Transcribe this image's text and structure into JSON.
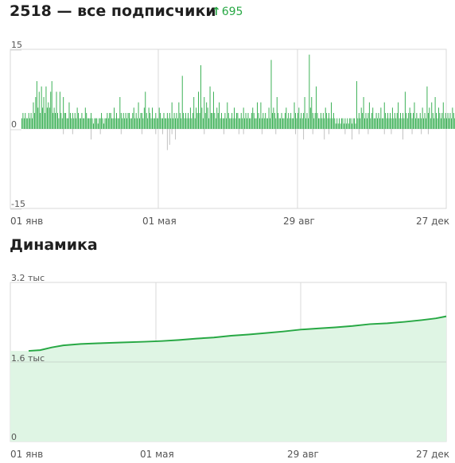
{
  "header": {
    "title": "2518 — все подписчики",
    "delta_arrow": "↑",
    "delta_value": "695"
  },
  "dynamics": {
    "title": "Динамика"
  },
  "colors": {
    "green": "#27a844",
    "grid": "#d9d9d9",
    "area": "#dff5e4"
  },
  "chart_data": [
    {
      "type": "bar",
      "x_tick_labels": [
        "01 янв",
        "01 мая",
        "29 авг",
        "27 дек"
      ],
      "y_tick_labels": [
        "15",
        "0",
        "-15"
      ],
      "ylim": [
        -15,
        15
      ],
      "days": 361,
      "positive_values": [
        2,
        3,
        2,
        3,
        2,
        2,
        3,
        2,
        3,
        2,
        5,
        3,
        6,
        9,
        4,
        7,
        3,
        8,
        4,
        6,
        3,
        8,
        4,
        5,
        4,
        7,
        9,
        3,
        4,
        3,
        7,
        3,
        2,
        7,
        3,
        2,
        6,
        3,
        3,
        2,
        2,
        5,
        3,
        2,
        3,
        2,
        3,
        2,
        4,
        3,
        2,
        2,
        3,
        2,
        2,
        4,
        3,
        2,
        2,
        2,
        3,
        2,
        1,
        2,
        2,
        2,
        1,
        2,
        2,
        3,
        2,
        1,
        2,
        2,
        3,
        2,
        3,
        3,
        2,
        2,
        4,
        2,
        3,
        2,
        2,
        6,
        3,
        2,
        3,
        2,
        3,
        2,
        3,
        3,
        2,
        2,
        3,
        4,
        2,
        3,
        2,
        5,
        2,
        3,
        3,
        2,
        4,
        7,
        3,
        2,
        4,
        3,
        2,
        4,
        2,
        2,
        3,
        2,
        2,
        4,
        3,
        2,
        2,
        3,
        2,
        2,
        3,
        2,
        3,
        2,
        5,
        2,
        3,
        2,
        3,
        2,
        5,
        3,
        2,
        10,
        3,
        2,
        3,
        2,
        3,
        2,
        4,
        2,
        3,
        6,
        2,
        4,
        3,
        7,
        3,
        12,
        4,
        2,
        6,
        3,
        5,
        4,
        2,
        8,
        3,
        3,
        7,
        3,
        2,
        4,
        3,
        5,
        2,
        3,
        2,
        2,
        3,
        2,
        5,
        3,
        2,
        2,
        3,
        2,
        4,
        2,
        3,
        3,
        2,
        2,
        3,
        2,
        4,
        2,
        3,
        2,
        3,
        2,
        2,
        3,
        4,
        3,
        2,
        2,
        5,
        3,
        2,
        5,
        2,
        3,
        2,
        3,
        2,
        2,
        4,
        2,
        13,
        3,
        4,
        3,
        2,
        6,
        3,
        2,
        2,
        3,
        2,
        2,
        3,
        4,
        2,
        3,
        2,
        3,
        2,
        2,
        5,
        3,
        2,
        3,
        4,
        2,
        3,
        2,
        3,
        6,
        2,
        3,
        2,
        14,
        4,
        6,
        3,
        2,
        3,
        8,
        3,
        2,
        2,
        3,
        2,
        3,
        2,
        4,
        3,
        2,
        3,
        2,
        5,
        2,
        3,
        2,
        1,
        2,
        1,
        2,
        1,
        2,
        2,
        1,
        2,
        1,
        2,
        1,
        2,
        2,
        1,
        2,
        2,
        1,
        9,
        2,
        3,
        2,
        4,
        3,
        6,
        2,
        3,
        2,
        3,
        5,
        2,
        3,
        4,
        2,
        2,
        3,
        2,
        3,
        2,
        4,
        2,
        2,
        5,
        3,
        2,
        3,
        2,
        3,
        2,
        4,
        2,
        3,
        2,
        3,
        5,
        2,
        3,
        2,
        3,
        2,
        7,
        3,
        2,
        3,
        4,
        3,
        2,
        3,
        5,
        2,
        3,
        2,
        2,
        3,
        2,
        4,
        2,
        3,
        2,
        8,
        3,
        4,
        2,
        5,
        3,
        2,
        6,
        3,
        2,
        4,
        3,
        2,
        3,
        5,
        2,
        3,
        2,
        3,
        2,
        3,
        2,
        4,
        3,
        2,
        3,
        4,
        2,
        3,
        2,
        5,
        3,
        4,
        3,
        2,
        3,
        2,
        4,
        3,
        2,
        5,
        2,
        3,
        2
      ],
      "negative_values": [
        0,
        0,
        0,
        0,
        0,
        0,
        0,
        0,
        0,
        0,
        0,
        0,
        0,
        0,
        0,
        0,
        0,
        0,
        0,
        0,
        0,
        0,
        0,
        0,
        0,
        0,
        0,
        0,
        0,
        0,
        0,
        0,
        0,
        0,
        0,
        0,
        0,
        0,
        0,
        0,
        0,
        0,
        0,
        0,
        0,
        0,
        0,
        0,
        0,
        0,
        0,
        0,
        0,
        0,
        0,
        0,
        0,
        0,
        0,
        0,
        0,
        0,
        0,
        0,
        0,
        0,
        0,
        0,
        0,
        0,
        0,
        0,
        0,
        0,
        0,
        0,
        0,
        0,
        0,
        0,
        0,
        0,
        0,
        0,
        0,
        0,
        0,
        0,
        0,
        0,
        0,
        0,
        0,
        0,
        0,
        0,
        0,
        0,
        0,
        0,
        0,
        0,
        0,
        0,
        0,
        0,
        0,
        0,
        0,
        0,
        0,
        0,
        0,
        0,
        0,
        0,
        0,
        0,
        0,
        0,
        0,
        0,
        0,
        0,
        0,
        0,
        0,
        0,
        0,
        0,
        0,
        0,
        0,
        0,
        0,
        0,
        0,
        0,
        0,
        0,
        0,
        0,
        0,
        0,
        0,
        0,
        0,
        0,
        0,
        0,
        0,
        0,
        0,
        0,
        0,
        0,
        0,
        0,
        0,
        0,
        0,
        0,
        0,
        0,
        0,
        0,
        0,
        0,
        0,
        0,
        0,
        0,
        0,
        0,
        0,
        0,
        0,
        0,
        0,
        0,
        0,
        0,
        0,
        0,
        0,
        0,
        0,
        0,
        0,
        0,
        0,
        0,
        0,
        0,
        0,
        0,
        0,
        0,
        0,
        0,
        0,
        0,
        0,
        0,
        0,
        0,
        0,
        0,
        0,
        0,
        0,
        0,
        0,
        0,
        0,
        0,
        0,
        0,
        0,
        0,
        0,
        0,
        0,
        0,
        0,
        0,
        0,
        0,
        0,
        0,
        0,
        0,
        0,
        0,
        0,
        0,
        0,
        0,
        0,
        0,
        0,
        0,
        0,
        0,
        0,
        0,
        0,
        0,
        0,
        0,
        0,
        0,
        0,
        0,
        0,
        0,
        0,
        0,
        0,
        0,
        0,
        0,
        0,
        0,
        0,
        0,
        0,
        0,
        0,
        0,
        0,
        0,
        0,
        0,
        0,
        0,
        0,
        0,
        0,
        0,
        0,
        0,
        0,
        0,
        0,
        0,
        0,
        0,
        0,
        0,
        0,
        0,
        0,
        0,
        0,
        0,
        0,
        0,
        0,
        0,
        0,
        0,
        0,
        0,
        0,
        0,
        0,
        0,
        0,
        0,
        0,
        0,
        0,
        0,
        0,
        0,
        0,
        0,
        0,
        0,
        0,
        0,
        0,
        0,
        0,
        0,
        0,
        0,
        0,
        0,
        0,
        0,
        0,
        0,
        0,
        0,
        0,
        0,
        0,
        0,
        0,
        0,
        0,
        0,
        0,
        0,
        0,
        0,
        0,
        0,
        0,
        0,
        0,
        0,
        0,
        0,
        0,
        0,
        0,
        0,
        0,
        0,
        0,
        0,
        0,
        0,
        0,
        0,
        0,
        0,
        0,
        0,
        0,
        0,
        0,
        0,
        0,
        0,
        0,
        0,
        0,
        0,
        0,
        0,
        0,
        0,
        0,
        0,
        0,
        0,
        0,
        0,
        0,
        0,
        0
      ],
      "negative_points": [
        [
          36,
          -1
        ],
        [
          44,
          -1
        ],
        [
          60,
          -2
        ],
        [
          68,
          -1
        ],
        [
          86,
          -1
        ],
        [
          104,
          -1
        ],
        [
          116,
          -1
        ],
        [
          122,
          -1
        ],
        [
          126,
          -4
        ],
        [
          128,
          -3
        ],
        [
          130,
          -1
        ],
        [
          133,
          -2
        ],
        [
          158,
          -1
        ],
        [
          175,
          -1
        ],
        [
          188,
          -1
        ],
        [
          192,
          -1
        ],
        [
          208,
          -1
        ],
        [
          220,
          -1
        ],
        [
          237,
          -1
        ],
        [
          244,
          -2
        ],
        [
          252,
          -1
        ],
        [
          262,
          -2
        ],
        [
          266,
          -1
        ],
        [
          280,
          -1
        ],
        [
          286,
          -2
        ],
        [
          292,
          -1
        ],
        [
          300,
          -1
        ],
        [
          314,
          -1
        ],
        [
          320,
          -1
        ],
        [
          330,
          -2
        ],
        [
          338,
          -1
        ],
        [
          346,
          -1
        ],
        [
          352,
          -1
        ]
      ]
    },
    {
      "type": "area",
      "x_tick_labels": [
        "01 янв",
        "01 мая",
        "29 авг",
        "27 дек"
      ],
      "y_tick_labels": [
        "3.2 тыс",
        "1.6 тыс",
        "0"
      ],
      "ylim": [
        0,
        3200
      ],
      "days": 361,
      "x": [
        0,
        10,
        20,
        30,
        45,
        60,
        80,
        100,
        115,
        130,
        145,
        160,
        175,
        190,
        205,
        220,
        235,
        250,
        265,
        280,
        295,
        310,
        325,
        340,
        352,
        361
      ],
      "y": [
        1823,
        1838,
        1893,
        1934,
        1962,
        1976,
        1992,
        2007,
        2021,
        2042,
        2070,
        2092,
        2128,
        2152,
        2182,
        2213,
        2251,
        2274,
        2296,
        2324,
        2361,
        2378,
        2407,
        2443,
        2477,
        2518
      ]
    }
  ]
}
